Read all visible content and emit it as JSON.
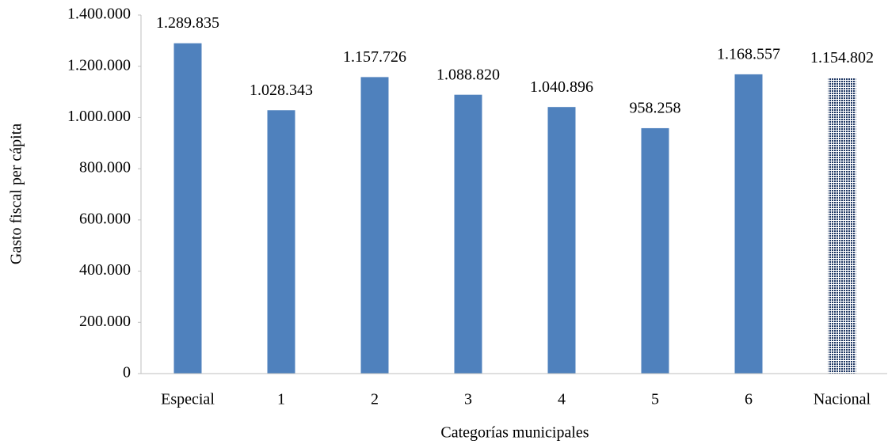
{
  "chart_data": {
    "type": "bar",
    "x_label": "Categorías municipales",
    "y_label": "Gasto fiscal per cápita",
    "categories": [
      "Especial",
      "1",
      "2",
      "3",
      "4",
      "5",
      "6",
      "Nacional"
    ],
    "values": [
      1289835,
      1028343,
      1157726,
      1088820,
      1040896,
      958258,
      1168557,
      1154802
    ],
    "value_labels": [
      "1.289.835",
      "1.028.343",
      "1.157.726",
      "1.088.820",
      "1.040.896",
      "958.258",
      "1.168.557",
      "1.154.802"
    ],
    "colors": [
      "#4f81bd",
      "#4f81bd",
      "#4f81bd",
      "#4f81bd",
      "#4f81bd",
      "#4f81bd",
      "#4f81bd",
      "#1f3864"
    ],
    "hatched": [
      false,
      false,
      false,
      false,
      false,
      false,
      false,
      true
    ],
    "ylim": [
      0,
      1400000
    ],
    "yticks": [
      0,
      {
        "value": 200000,
        "label": "200.000"
      },
      {
        "value": 400000,
        "label": "400.000"
      },
      {
        "value": 600000,
        "label": "600.000"
      },
      {
        "value": 800000,
        "label": "800.000"
      },
      {
        "value": 1000000,
        "label": "1.000.000"
      },
      {
        "value": 1200000,
        "label": "1.200.000"
      },
      {
        "value": 1400000,
        "label": "1.400.000"
      }
    ],
    "grid": false
  }
}
